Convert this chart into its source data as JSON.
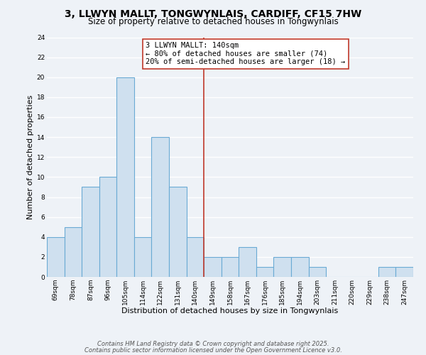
{
  "title_line1": "3, LLWYN MALLT, TONGWYNLAIS, CARDIFF, CF15 7HW",
  "title_line2": "Size of property relative to detached houses in Tongwynlais",
  "bar_labels": [
    "69sqm",
    "78sqm",
    "87sqm",
    "96sqm",
    "105sqm",
    "114sqm",
    "122sqm",
    "131sqm",
    "140sqm",
    "149sqm",
    "158sqm",
    "167sqm",
    "176sqm",
    "185sqm",
    "194sqm",
    "203sqm",
    "211sqm",
    "220sqm",
    "229sqm",
    "238sqm",
    "247sqm"
  ],
  "bar_values": [
    4,
    5,
    9,
    10,
    20,
    4,
    14,
    9,
    4,
    2,
    2,
    3,
    1,
    2,
    2,
    1,
    0,
    0,
    0,
    1,
    1
  ],
  "bar_color": "#cfe0ef",
  "bar_edge_color": "#6aaad4",
  "vline_color": "#c0392b",
  "xlabel": "Distribution of detached houses by size in Tongwynlais",
  "ylabel": "Number of detached properties",
  "ylim": [
    0,
    24
  ],
  "yticks": [
    0,
    2,
    4,
    6,
    8,
    10,
    12,
    14,
    16,
    18,
    20,
    22,
    24
  ],
  "annotation_title": "3 LLWYN MALLT: 140sqm",
  "annotation_line2": "← 80% of detached houses are smaller (74)",
  "annotation_line3": "20% of semi-detached houses are larger (18) →",
  "annotation_box_color": "#ffffff",
  "annotation_box_edge": "#c0392b",
  "footer_line1": "Contains HM Land Registry data © Crown copyright and database right 2025.",
  "footer_line2": "Contains public sector information licensed under the Open Government Licence v3.0.",
  "background_color": "#eef2f7",
  "grid_color": "#ffffff",
  "title_fontsize": 10,
  "subtitle_fontsize": 8.5,
  "axis_label_fontsize": 8,
  "tick_fontsize": 6.5,
  "annotation_fontsize": 7.5,
  "footer_fontsize": 6
}
